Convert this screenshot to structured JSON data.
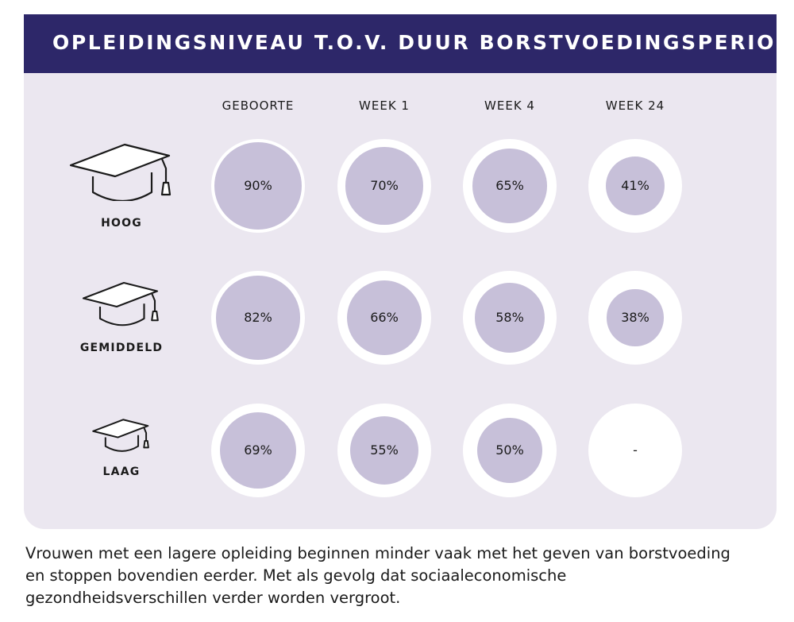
{
  "title": "OPLEIDINGSNIVEAU T.O.V. DUUR BORSTVOEDINGSPERIODE **",
  "chart_data": {
    "type": "bubble-grid",
    "title": "OPLEIDINGSNIVEAU T.O.V. DUUR BORSTVOEDINGSPERIODE **",
    "categories": [
      "GEBOORTE",
      "WEEK 1",
      "WEEK 4",
      "WEEK 24"
    ],
    "series": [
      {
        "name": "HOOG",
        "values": [
          90,
          70,
          65,
          41
        ],
        "labels": [
          "90%",
          "70%",
          "65%",
          "41%"
        ]
      },
      {
        "name": "GEMIDDELD",
        "values": [
          82,
          66,
          58,
          38
        ],
        "labels": [
          "82%",
          "66%",
          "58%",
          "38%"
        ]
      },
      {
        "name": "LAAG",
        "values": [
          69,
          55,
          50,
          null
        ],
        "labels": [
          "69%",
          "55%",
          "50%",
          "-"
        ]
      }
    ],
    "unit": "%"
  },
  "colors": {
    "header": "#2d2769",
    "panel": "#ebe7f0",
    "bubble": "#c7c0d9",
    "ring": "#ffffff"
  },
  "icons": [
    "graduation-cap-icon"
  ],
  "caption": "Vrouwen met een lagere opleiding beginnen minder vaak met het geven van borstvoeding en stoppen bovendien eerder. Met als gevolg dat sociaaleconomische gezondheidsverschillen verder worden vergroot."
}
